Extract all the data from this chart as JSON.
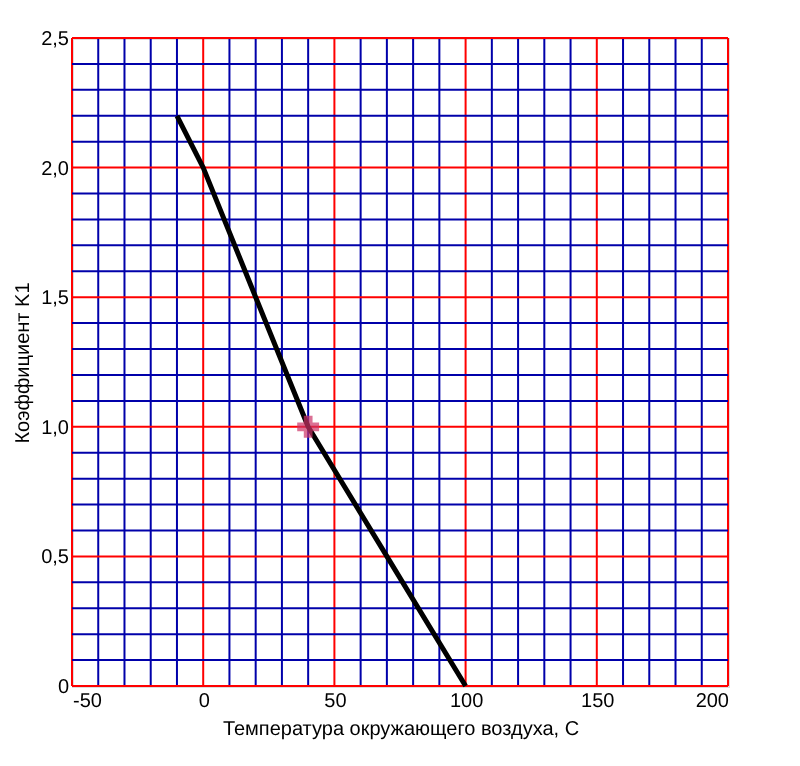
{
  "chart_data": {
    "type": "line",
    "xlabel": "Температура окружающего воздуха, С",
    "ylabel": "Коэффициент K1",
    "xlim": [
      -50,
      200
    ],
    "ylim": [
      0,
      2.5
    ],
    "xticks": [
      -50,
      {
        "value": -40,
        "label": null
      },
      {
        "value": -30,
        "label": null
      },
      {
        "value": -20,
        "label": null
      },
      {
        "value": -10,
        "label": null
      },
      0,
      {
        "value": 10,
        "label": null
      },
      {
        "value": 20,
        "label": null
      },
      {
        "value": 30,
        "label": null
      },
      {
        "value": 40,
        "label": null
      },
      50,
      {
        "value": 60,
        "label": null
      },
      {
        "value": 70,
        "label": null
      },
      {
        "value": 80,
        "label": null
      },
      {
        "value": 90,
        "label": null
      },
      100,
      {
        "value": 110,
        "label": null
      },
      {
        "value": 120,
        "label": null
      },
      {
        "value": 130,
        "label": null
      },
      {
        "value": 140,
        "label": null
      },
      150,
      {
        "value": 160,
        "label": null
      },
      {
        "value": 170,
        "label": null
      },
      {
        "value": 180,
        "label": null
      },
      {
        "value": 190,
        "label": null
      },
      200
    ],
    "yticks": [
      0,
      {
        "value": 0.1,
        "label": null
      },
      {
        "value": 0.2,
        "label": null
      },
      {
        "value": 0.3,
        "label": null
      },
      {
        "value": 0.4,
        "label": null
      },
      {
        "value": 0.5,
        "label": "0,5"
      },
      {
        "value": 0.6,
        "label": null
      },
      {
        "value": 0.7,
        "label": null
      },
      {
        "value": 0.8,
        "label": null
      },
      {
        "value": 0.9,
        "label": null
      },
      {
        "value": 1.0,
        "label": "1,0"
      },
      {
        "value": 1.1,
        "label": null
      },
      {
        "value": 1.2,
        "label": null
      },
      {
        "value": 1.3,
        "label": null
      },
      {
        "value": 1.4,
        "label": null
      },
      {
        "value": 1.5,
        "label": "1,5"
      },
      {
        "value": 1.6,
        "label": null
      },
      {
        "value": 1.7,
        "label": null
      },
      {
        "value": 1.8,
        "label": null
      },
      {
        "value": 1.9,
        "label": null
      },
      {
        "value": 2.0,
        "label": "2,0"
      },
      {
        "value": 2.1,
        "label": null
      },
      {
        "value": 2.2,
        "label": null
      },
      {
        "value": 2.3,
        "label": null
      },
      {
        "value": 2.4,
        "label": null
      },
      {
        "value": 2.5,
        "label": "2,5"
      }
    ],
    "grid": true,
    "series": [
      {
        "color": "#000000",
        "x": [
          -10,
          0,
          20,
          40,
          70,
          100
        ],
        "values": [
          2.2,
          2.0,
          1.5,
          1.0,
          0.5,
          0
        ],
        "marker": "none",
        "line_style": "solid"
      },
      {
        "type": "scatter",
        "color": "#cc3366",
        "x": [
          40
        ],
        "values": [
          1.0
        ],
        "marker": "cross"
      }
    ]
  }
}
